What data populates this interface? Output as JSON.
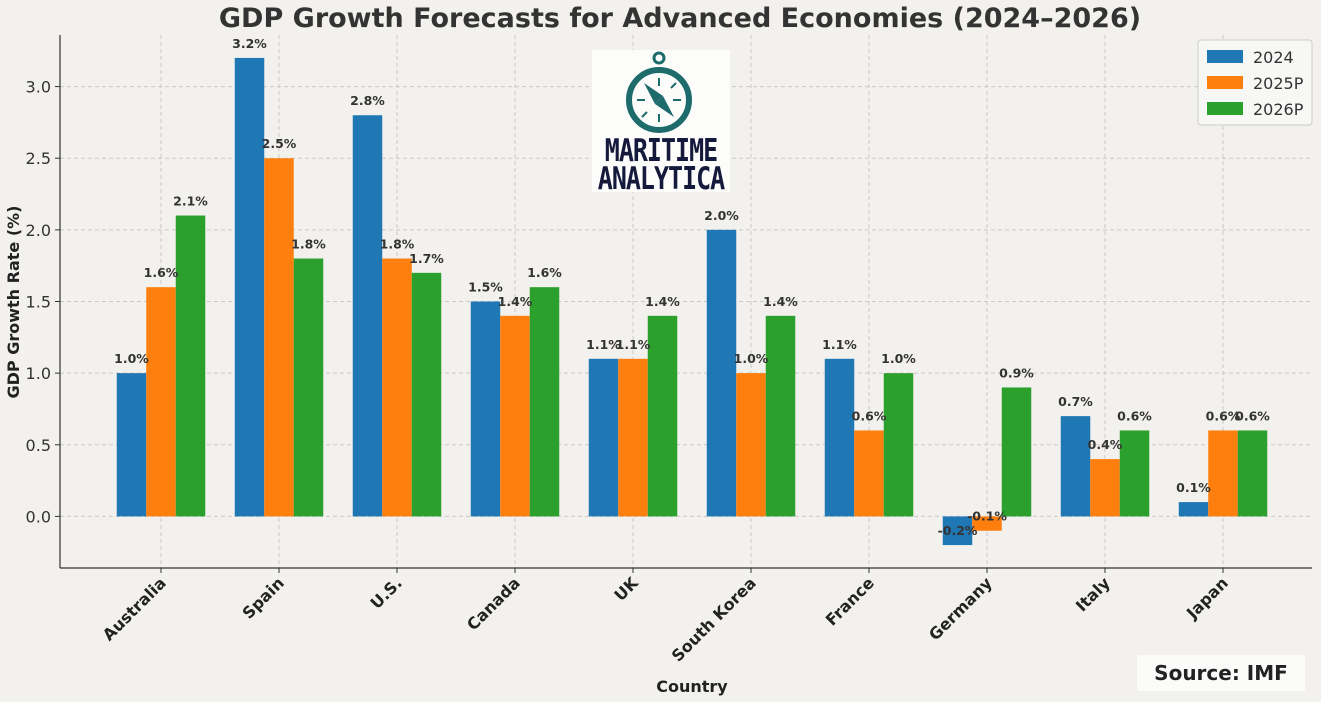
{
  "chart_data": {
    "type": "bar",
    "title": "GDP Growth Forecasts for Advanced Economies (2024–2026)",
    "xlabel": "Country",
    "ylabel": "GDP Growth Rate (%)",
    "ylim": [
      -0.36,
      3.36
    ],
    "yticks": [
      0.0,
      0.5,
      1.0,
      1.5,
      2.0,
      2.5,
      3.0
    ],
    "grid": true,
    "legend_position": "top-right",
    "categories": [
      "Australia",
      "Spain",
      "U.S.",
      "Canada",
      "UK",
      "South Korea",
      "France",
      "Germany",
      "Italy",
      "Japan"
    ],
    "series": [
      {
        "name": "2024",
        "color": "#1f77b4",
        "values": [
          1.0,
          3.2,
          2.8,
          1.5,
          1.1,
          2.0,
          1.1,
          -0.2,
          0.7,
          0.1
        ]
      },
      {
        "name": "2025P",
        "color": "#ff7f0e",
        "values": [
          1.6,
          2.5,
          1.8,
          1.4,
          1.1,
          1.0,
          0.6,
          -0.1,
          0.4,
          0.6
        ]
      },
      {
        "name": "2026P",
        "color": "#2ca02c",
        "values": [
          2.1,
          1.8,
          1.7,
          1.6,
          1.4,
          1.4,
          1.0,
          0.9,
          0.6,
          0.6
        ]
      }
    ]
  },
  "logo": {
    "line1": "MARITIME",
    "line2": "ANALYTICA"
  },
  "source": "Source: IMF"
}
